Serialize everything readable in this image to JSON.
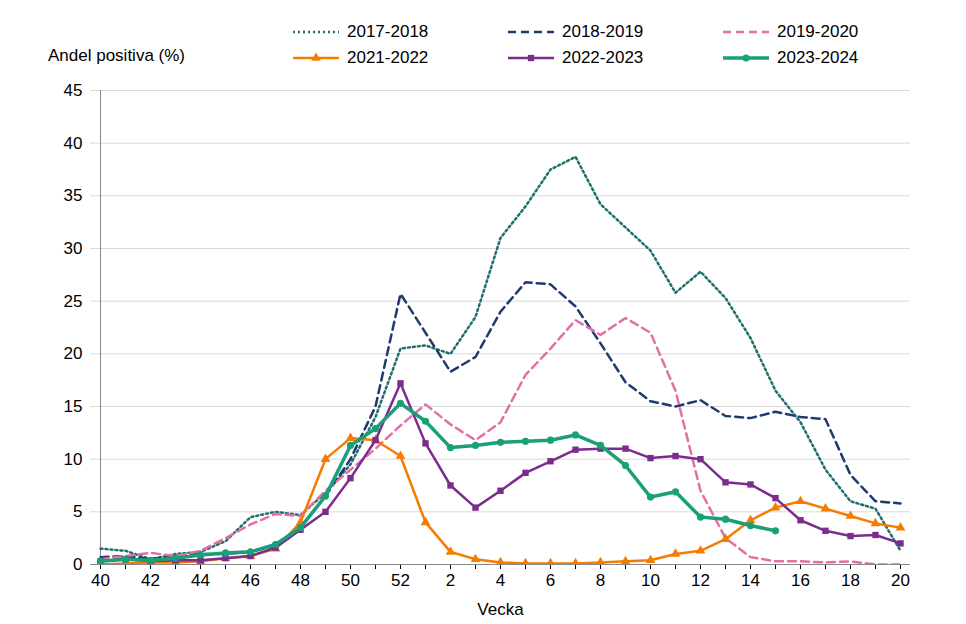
{
  "chart_data": {
    "type": "line",
    "x_label": "Vecka",
    "y_label": "Andel positiva (%)",
    "categories": [
      "40",
      null,
      "42",
      null,
      "44",
      null,
      "46",
      null,
      "48",
      null,
      "50",
      null,
      "52",
      null,
      "2",
      null,
      "4",
      null,
      "6",
      null,
      "8",
      null,
      "10",
      null,
      "12",
      null,
      "14",
      null,
      "16",
      null,
      "18",
      null,
      "20"
    ],
    "ylim": [
      0,
      45
    ],
    "yticks": [
      0,
      5,
      10,
      15,
      20,
      25,
      30,
      35,
      40,
      45
    ],
    "grid": true,
    "legend": "top",
    "series": [
      {
        "name": "2017-2018",
        "color": "#1f6f6b",
        "line_style": "dotted",
        "marker": "none",
        "values": [
          1.5,
          1.3,
          0.5,
          1.0,
          1.2,
          2.2,
          4.5,
          5.0,
          4.7,
          6.8,
          9.5,
          14,
          20.5,
          20.8,
          20,
          23.5,
          31,
          34,
          37.5,
          38.7,
          34.2,
          32,
          29.8,
          25.8,
          27.8,
          25.3,
          21.5,
          16.5,
          13.5,
          9,
          6,
          5.3,
          1.3
        ]
      },
      {
        "name": "2018-2019",
        "color": "#1f3a6e",
        "line_style": "dashed",
        "marker": "none",
        "values": [
          0.7,
          0.8,
          0.5,
          0.8,
          1.0,
          1.0,
          1.2,
          1.8,
          3.5,
          6.5,
          10,
          15,
          25.7,
          22,
          18.3,
          19.7,
          24,
          26.8,
          26.6,
          24.5,
          21,
          17.3,
          15.5,
          15,
          15.6,
          14.1,
          13.9,
          14.5,
          14,
          13.8,
          8.5,
          6,
          5.8
        ]
      },
      {
        "name": "2019-2020",
        "color": "#e36fa6",
        "line_style": "dashed",
        "marker": "none",
        "values": [
          0.5,
          0.8,
          1.1,
          0.8,
          1.3,
          2.5,
          3.8,
          4.8,
          4.6,
          7,
          9,
          11,
          13.2,
          15.2,
          13.3,
          11.8,
          13.5,
          18,
          20.5,
          23.2,
          21.8,
          23.4,
          22,
          16.5,
          7,
          2.5,
          0.7,
          0.3,
          0.3,
          0.2,
          0.3,
          0,
          0
        ]
      },
      {
        "name": "2021-2022",
        "color": "#f57c00",
        "line_style": "solid",
        "marker": "triangle",
        "values": [
          0,
          0.1,
          0.2,
          0.2,
          0.3,
          0.6,
          0.8,
          1.5,
          4,
          10,
          12,
          11.8,
          10.3,
          4,
          1.2,
          0.5,
          0.2,
          0.1,
          0.1,
          0.1,
          0.2,
          0.3,
          0.4,
          1.0,
          1.3,
          2.4,
          4.2,
          5.4,
          6,
          5.3,
          4.6,
          3.9,
          3.5
        ]
      },
      {
        "name": "2022-2023",
        "color": "#7b2d8e",
        "line_style": "solid",
        "marker": "square",
        "values": [
          0.3,
          0.5,
          0.3,
          0.4,
          0.4,
          0.6,
          0.8,
          1.6,
          3.3,
          5,
          8.2,
          11.8,
          17.2,
          11.5,
          7.5,
          5.4,
          7,
          8.7,
          9.8,
          10.9,
          11,
          11,
          10.1,
          10.3,
          10,
          7.8,
          7.6,
          6.3,
          4.2,
          3.2,
          2.7,
          2.8,
          2.0
        ]
      },
      {
        "name": "2023-2024",
        "color": "#1aa078",
        "line_style": "solid",
        "marker": "circle",
        "values": [
          0.3,
          0.5,
          0.4,
          0.6,
          0.9,
          1.1,
          1.2,
          1.9,
          3.5,
          6.5,
          11.3,
          12.9,
          15.3,
          13.6,
          11.1,
          11.3,
          11.6,
          11.7,
          11.8,
          12.3,
          11.3,
          9.4,
          6.4,
          6.9,
          4.5,
          4.3,
          3.7,
          3.2,
          null,
          null,
          null,
          null,
          null
        ]
      }
    ]
  }
}
